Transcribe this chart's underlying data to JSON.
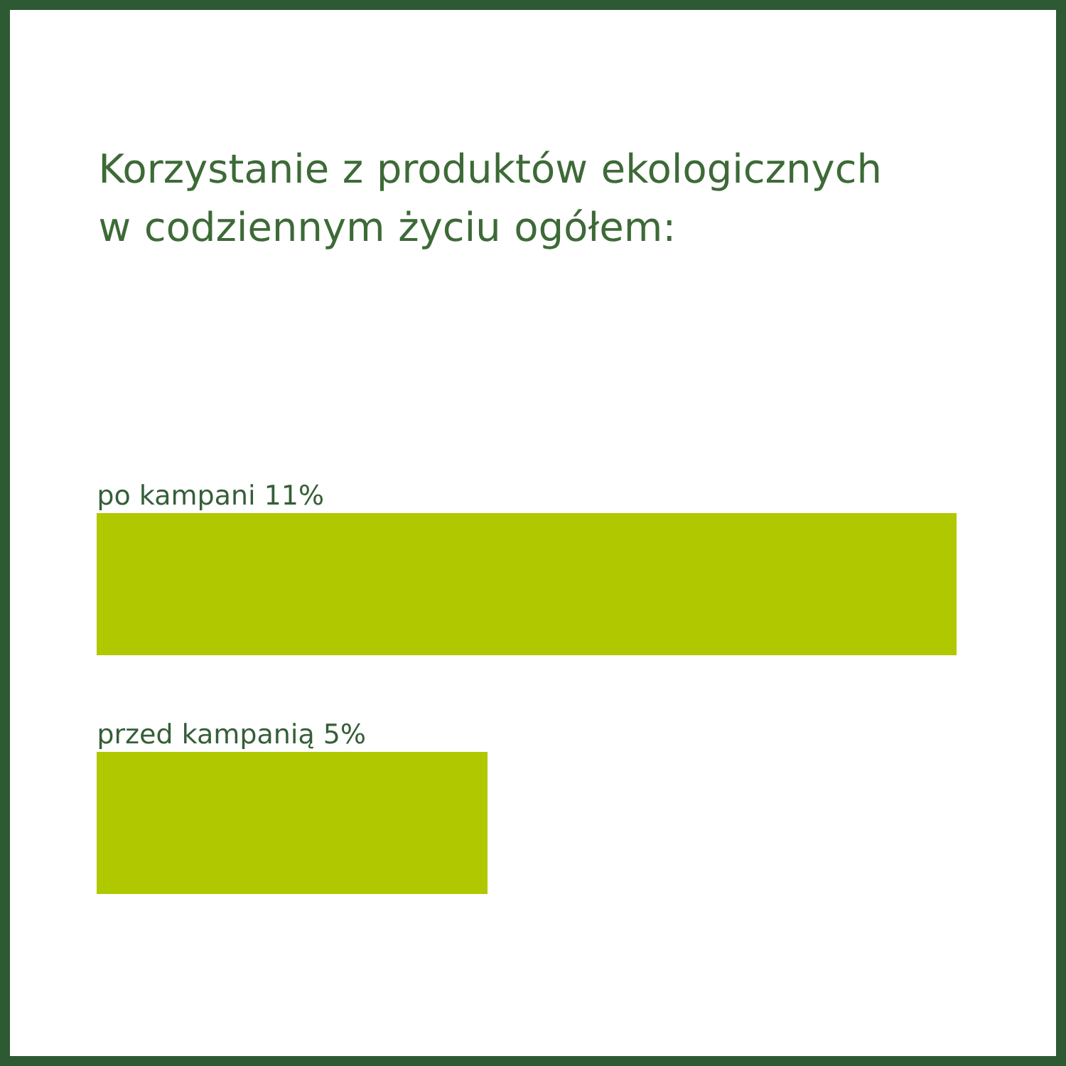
{
  "chart_data": {
    "type": "bar",
    "orientation": "horizontal",
    "title": "Korzystanie z produktów ekologicznych w codziennym życiu ogółem:",
    "categories": [
      "po kampani",
      "przed kampanią"
    ],
    "values": [
      11,
      5
    ],
    "value_labels": [
      "11%",
      "5%"
    ],
    "color": "#b0c800"
  }
}
